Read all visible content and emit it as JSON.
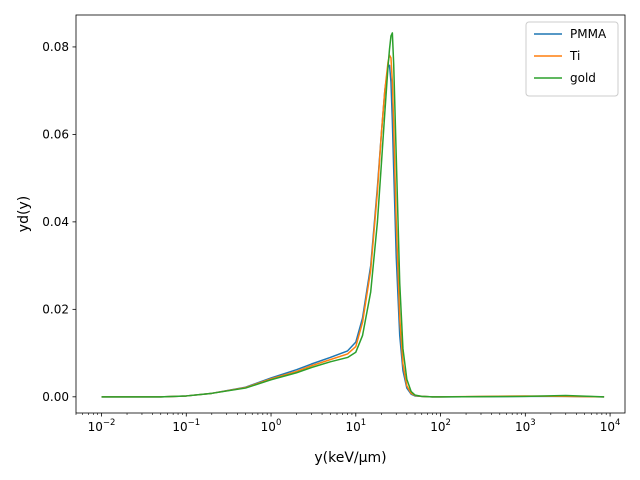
{
  "chart_data": {
    "type": "line",
    "title": "",
    "xlabel": "y(keV/µm)",
    "ylabel": "yd(y)",
    "xscale": "log",
    "xlim": [
      0.005,
      15000
    ],
    "ylim": [
      -0.0037,
      0.0873
    ],
    "xticks": [
      {
        "value": 0.01,
        "mantissa": "10",
        "exp": "−2"
      },
      {
        "value": 0.1,
        "mantissa": "10",
        "exp": "−1"
      },
      {
        "value": 1,
        "mantissa": "10",
        "exp": "0"
      },
      {
        "value": 10,
        "mantissa": "10",
        "exp": "1"
      },
      {
        "value": 100,
        "mantissa": "10",
        "exp": "2"
      },
      {
        "value": 1000,
        "mantissa": "10",
        "exp": "3"
      },
      {
        "value": 10000,
        "mantissa": "10",
        "exp": "4"
      }
    ],
    "yticks": [
      {
        "value": 0.0,
        "label": "0.00"
      },
      {
        "value": 0.02,
        "label": "0.02"
      },
      {
        "value": 0.04,
        "label": "0.04"
      },
      {
        "value": 0.06,
        "label": "0.06"
      },
      {
        "value": 0.08,
        "label": "0.08"
      }
    ],
    "grid": false,
    "legend_position": "top-right",
    "series": [
      {
        "name": "PMMA",
        "color": "#1f77b4",
        "x": [
          0.01,
          0.05,
          0.1,
          0.2,
          0.5,
          1,
          2,
          3,
          5,
          8,
          10,
          12,
          15,
          18,
          20,
          22,
          24,
          25,
          26,
          27,
          28,
          30,
          33,
          36,
          40,
          45,
          50,
          60,
          80,
          100,
          1000,
          3000,
          8500
        ],
        "y": [
          0.0,
          0.0,
          0.0002,
          0.0008,
          0.0022,
          0.0043,
          0.0062,
          0.0075,
          0.009,
          0.0105,
          0.0125,
          0.018,
          0.03,
          0.048,
          0.06,
          0.07,
          0.0755,
          0.0758,
          0.072,
          0.063,
          0.052,
          0.032,
          0.014,
          0.006,
          0.002,
          0.0006,
          0.0002,
          0.0001,
          0.0,
          0.0,
          0.0001,
          0.0001,
          0.0
        ]
      },
      {
        "name": "Ti",
        "color": "#ff7f0e",
        "x": [
          0.01,
          0.05,
          0.1,
          0.2,
          0.5,
          1,
          2,
          3,
          5,
          8,
          10,
          12,
          15,
          18,
          20,
          22,
          24,
          25,
          26,
          27,
          28,
          30,
          33,
          36,
          40,
          45,
          50,
          60,
          80,
          100,
          1000,
          3000,
          8500
        ],
        "y": [
          0.0,
          0.0,
          0.0002,
          0.0008,
          0.0021,
          0.0041,
          0.0058,
          0.0071,
          0.0085,
          0.0098,
          0.0115,
          0.017,
          0.029,
          0.047,
          0.06,
          0.07,
          0.0765,
          0.0781,
          0.0775,
          0.072,
          0.062,
          0.04,
          0.018,
          0.0075,
          0.0025,
          0.0008,
          0.0003,
          0.0001,
          0.0,
          0.0,
          0.0002,
          0.0001,
          0.0
        ]
      },
      {
        "name": "gold",
        "color": "#2ca02c",
        "x": [
          0.01,
          0.05,
          0.1,
          0.2,
          0.5,
          1,
          2,
          3,
          5,
          8,
          10,
          12,
          15,
          18,
          20,
          22,
          24,
          25,
          26,
          27,
          28,
          30,
          33,
          36,
          40,
          45,
          50,
          60,
          80,
          100,
          1000,
          3000,
          8500
        ],
        "y": [
          0.0,
          0.0,
          0.0002,
          0.0008,
          0.002,
          0.0039,
          0.0055,
          0.0067,
          0.008,
          0.009,
          0.0102,
          0.014,
          0.024,
          0.04,
          0.053,
          0.065,
          0.0755,
          0.0795,
          0.0825,
          0.0832,
          0.076,
          0.055,
          0.026,
          0.011,
          0.004,
          0.0012,
          0.0004,
          0.0001,
          0.0,
          0.0,
          0.0001,
          0.0003,
          0.0
        ]
      }
    ]
  }
}
